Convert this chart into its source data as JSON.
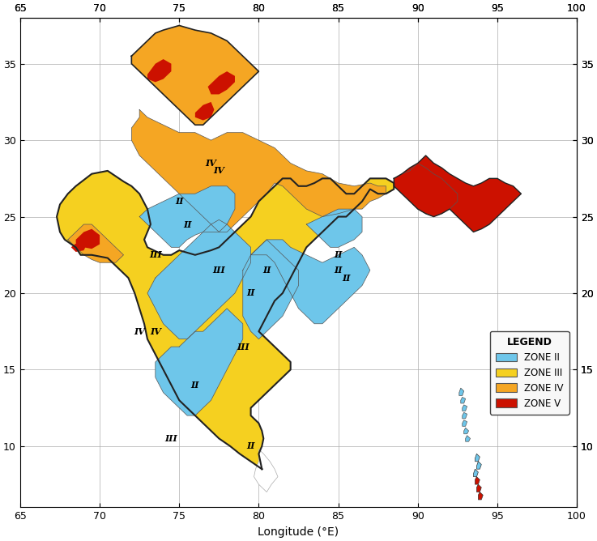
{
  "xlim": [
    65,
    100
  ],
  "ylim": [
    6,
    38
  ],
  "xticks": [
    65,
    70,
    75,
    80,
    85,
    90,
    95,
    100
  ],
  "yticks": [
    10,
    15,
    20,
    25,
    30,
    35
  ],
  "xlabel": "Longitude (°E)",
  "zone_colors": {
    "II": "#6EC6EA",
    "III": "#F5D020",
    "IV": "#F5A623",
    "V": "#CC1100"
  },
  "legend_title": "LEGEND",
  "legend_labels": [
    "ZONE II",
    "ZONE III",
    "ZONE IV",
    "ZONE V"
  ],
  "legend_colors": [
    "#6EC6EA",
    "#F5D020",
    "#F5A623",
    "#CC1100"
  ],
  "background_color": "#ffffff",
  "grid_color": "#aaaaaa",
  "outline_color": "#222222",
  "fig_width": 7.37,
  "fig_height": 6.68,
  "dpi": 100
}
